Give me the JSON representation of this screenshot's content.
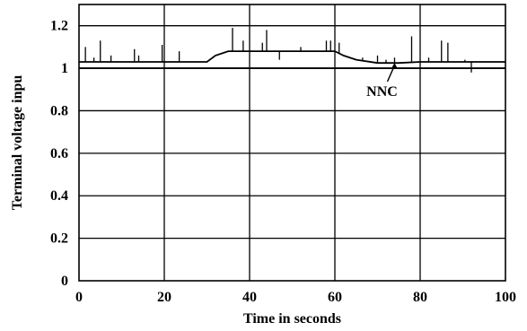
{
  "chart_data": {
    "type": "line",
    "title": "",
    "xlabel": "Time in seconds",
    "ylabel": "Terminal voltage inpu",
    "xlim": [
      0,
      100
    ],
    "ylim": [
      0,
      1.3
    ],
    "grid": true,
    "x_ticks": [
      "0",
      "20",
      "40",
      "60",
      "80",
      "100"
    ],
    "y_ticks": [
      "0",
      "0.2",
      "0.4",
      "0.6",
      "0.8",
      "1",
      "1.2"
    ],
    "x_tick_values": [
      0,
      20,
      40,
      60,
      80,
      100
    ],
    "y_tick_values": [
      0,
      0.2,
      0.4,
      0.6,
      0.8,
      1.0,
      1.2
    ],
    "series": [
      {
        "name": "",
        "x": [
          0,
          30,
          32,
          35,
          40,
          50,
          60,
          62,
          65,
          70,
          75,
          80,
          90,
          100
        ],
        "y": [
          1.03,
          1.03,
          1.06,
          1.08,
          1.08,
          1.08,
          1.08,
          1.06,
          1.04,
          1.025,
          1.025,
          1.03,
          1.03,
          1.03
        ]
      }
    ],
    "spikes": [
      {
        "x": 1.5,
        "y": 1.1
      },
      {
        "x": 3.5,
        "y": 1.05
      },
      {
        "x": 5,
        "y": 1.13
      },
      {
        "x": 7.5,
        "y": 1.06
      },
      {
        "x": 13,
        "y": 1.09
      },
      {
        "x": 14,
        "y": 1.06
      },
      {
        "x": 19.5,
        "y": 1.11
      },
      {
        "x": 23.5,
        "y": 1.08
      },
      {
        "x": 36,
        "y": 1.19
      },
      {
        "x": 38.5,
        "y": 1.13
      },
      {
        "x": 43,
        "y": 1.12
      },
      {
        "x": 44,
        "y": 1.18
      },
      {
        "x": 47,
        "y": 1.04
      },
      {
        "x": 52,
        "y": 1.1
      },
      {
        "x": 58,
        "y": 1.13
      },
      {
        "x": 59,
        "y": 1.13
      },
      {
        "x": 61,
        "y": 1.12
      },
      {
        "x": 66.5,
        "y": 1.05
      },
      {
        "x": 70,
        "y": 1.06
      },
      {
        "x": 72,
        "y": 1.04
      },
      {
        "x": 74,
        "y": 1.05
      },
      {
        "x": 78,
        "y": 1.15
      },
      {
        "x": 82,
        "y": 1.05
      },
      {
        "x": 85,
        "y": 1.13
      },
      {
        "x": 86.5,
        "y": 1.12
      },
      {
        "x": 90.5,
        "y": 1.04
      },
      {
        "x": 91.5,
        "y": 1.03
      },
      {
        "x": 92,
        "y": 0.98
      }
    ],
    "annotations": [
      {
        "text": "NNC",
        "x": 74,
        "y": 1.03
      }
    ]
  }
}
